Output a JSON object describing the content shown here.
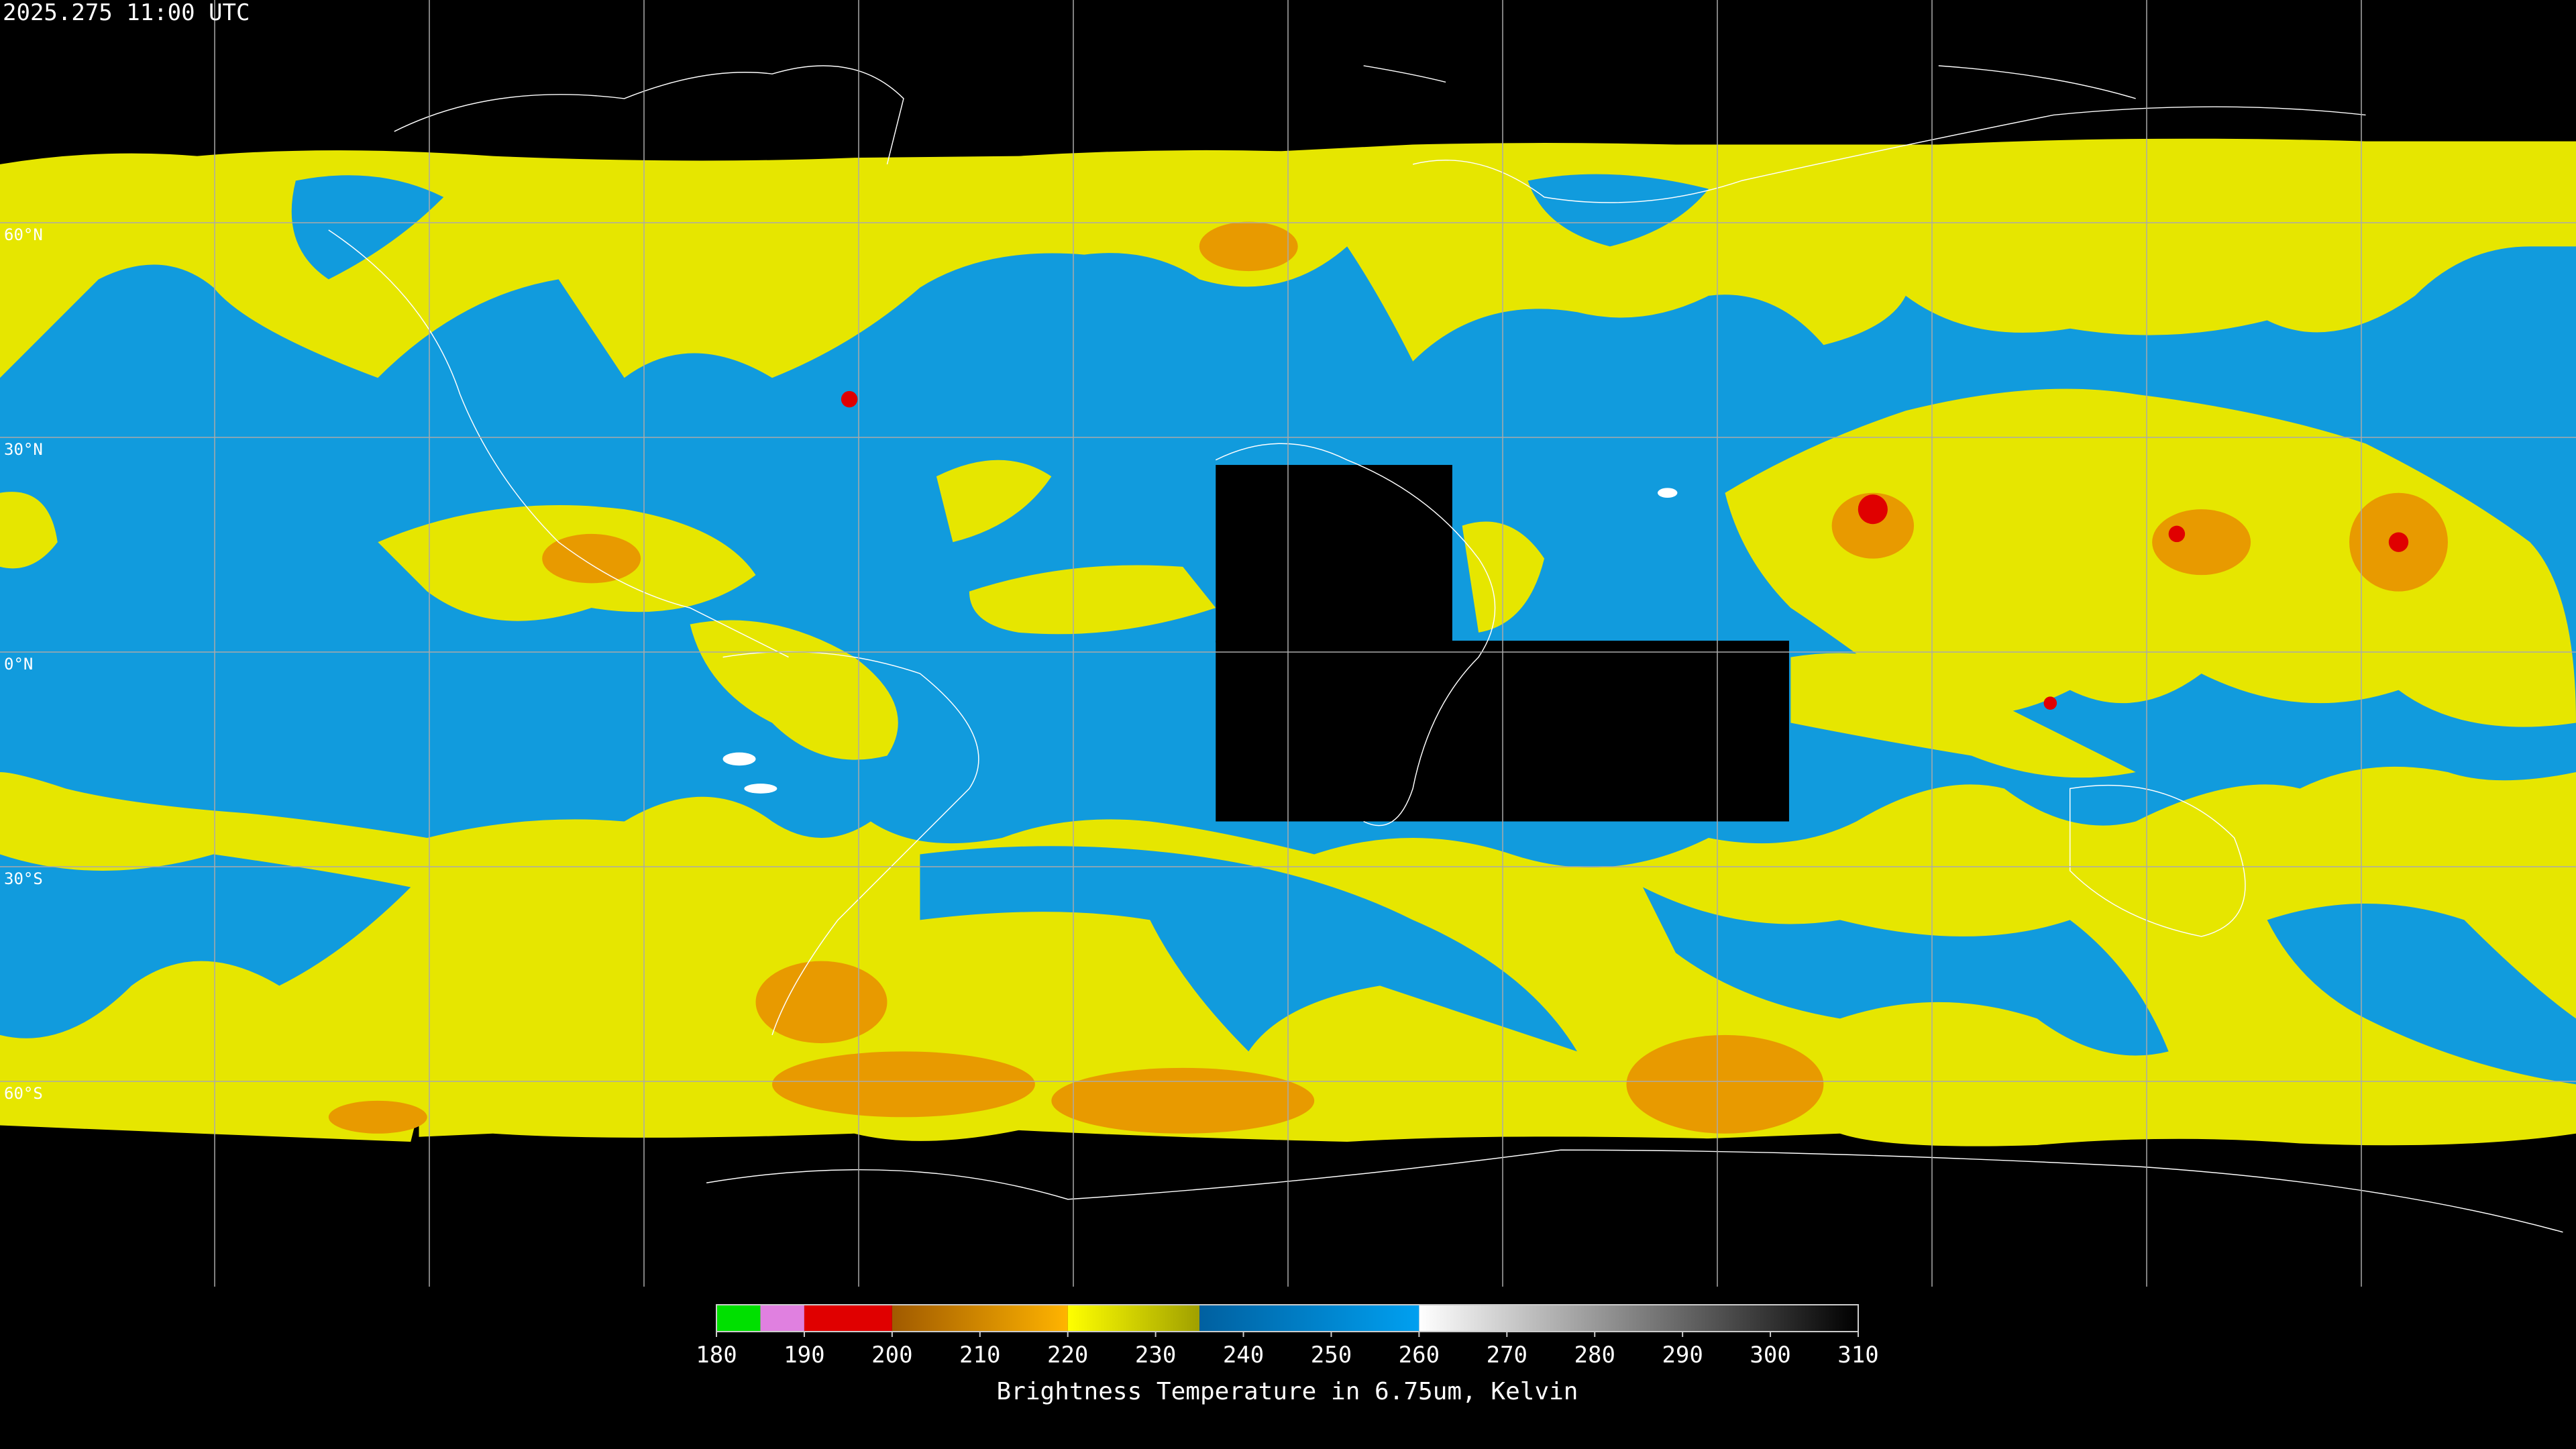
{
  "timestamp": "2025.275 11:00 UTC",
  "lat_labels": [
    "60°N",
    "30°N",
    "0°N",
    "30°S",
    "60°S"
  ],
  "colorbar": {
    "range": [
      180,
      310
    ],
    "ticks": [
      180,
      190,
      200,
      210,
      220,
      230,
      240,
      250,
      260,
      270,
      280,
      290,
      300,
      310
    ],
    "label": "Brightness Temperature in 6.75um, Kelvin",
    "segments": [
      {
        "range": [
          180,
          185
        ],
        "colors": [
          "#00e000",
          "#00e000"
        ]
      },
      {
        "range": [
          185,
          190
        ],
        "colors": [
          "#e080e0",
          "#e080e0"
        ]
      },
      {
        "range": [
          190,
          200
        ],
        "colors": [
          "#e00000",
          "#e00000"
        ]
      },
      {
        "range": [
          200,
          220
        ],
        "colors": [
          "#a05a00",
          "#ffb400"
        ]
      },
      {
        "range": [
          220,
          235
        ],
        "colors": [
          "#ffff00",
          "#a0a000"
        ]
      },
      {
        "range": [
          235,
          260
        ],
        "colors": [
          "#0060a0",
          "#00a0f0"
        ]
      },
      {
        "range": [
          260,
          310
        ],
        "colors": [
          "#ffffff",
          "#000000"
        ]
      }
    ]
  }
}
